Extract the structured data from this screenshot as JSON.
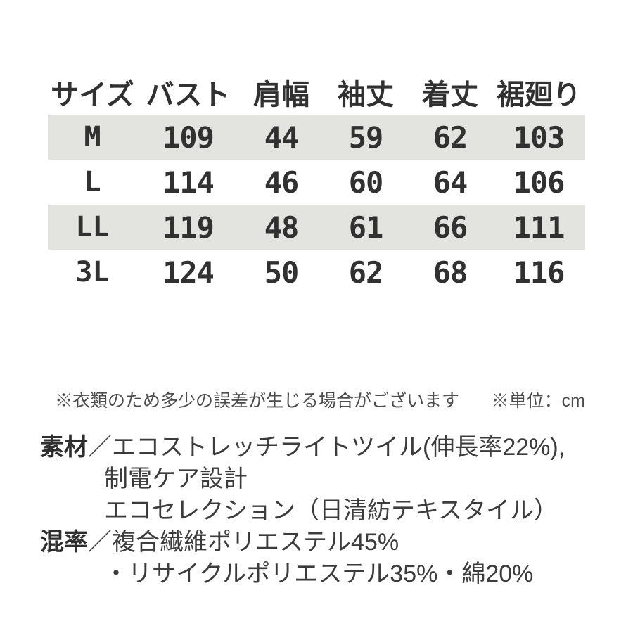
{
  "colors": {
    "stripe_row": "#e3e4e0",
    "table_text": "#313131",
    "note_text": "#4c4c4c",
    "spec_text": "#3c3c3c"
  },
  "table": {
    "columns": [
      "サイズ",
      "バスト",
      "肩幅",
      "袖丈",
      "着丈",
      "裾廻り"
    ],
    "rows": [
      {
        "size": "M",
        "values": [
          "109",
          "44",
          "59",
          "62",
          "103"
        ]
      },
      {
        "size": "L",
        "values": [
          "114",
          "46",
          "60",
          "64",
          "106"
        ]
      },
      {
        "size": "LL",
        "values": [
          "119",
          "48",
          "61",
          "66",
          "111"
        ]
      },
      {
        "size": "3L",
        "values": [
          "124",
          "50",
          "62",
          "68",
          "116"
        ]
      }
    ]
  },
  "chart_data": {
    "type": "table",
    "title": "",
    "columns": [
      "サイズ",
      "バスト",
      "肩幅",
      "袖丈",
      "着丈",
      "裾廻り"
    ],
    "rows": [
      [
        "M",
        109,
        44,
        59,
        62,
        103
      ],
      [
        "L",
        114,
        46,
        60,
        64,
        106
      ],
      [
        "LL",
        119,
        48,
        61,
        66,
        111
      ],
      [
        "3L",
        124,
        50,
        62,
        68,
        116
      ]
    ],
    "unit": "cm"
  },
  "notes": {
    "disclaimer": "※衣類のため多少の誤差が生じる場合がございます",
    "unit": "※単位：cm"
  },
  "specs": {
    "material_label": "素材",
    "separator_slash": "／",
    "material_lines": [
      "エコストレッチライトツイル(伸長率22%),",
      "制電ケア設計",
      "エコセレクション（日清紡テキスタイル）"
    ],
    "blend_label": "混率",
    "blend_lines": [
      "複合繊維ポリエステル45%",
      "・リサイクルポリエステル35%・綿20%"
    ]
  }
}
